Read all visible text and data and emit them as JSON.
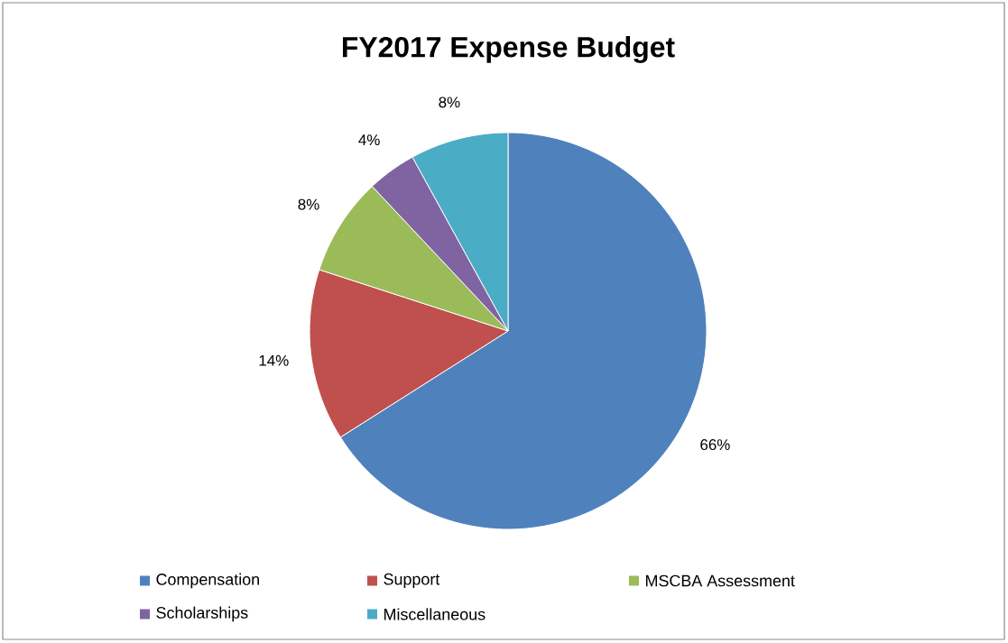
{
  "chart_data": {
    "type": "pie",
    "title": "FY2017  Expense Budget",
    "categories": [
      "Compensation",
      "Support",
      "MSCBA Assessment",
      "Scholarships",
      "Miscellaneous"
    ],
    "values": [
      66,
      14,
      8,
      4,
      8
    ],
    "value_labels": [
      "66%",
      "14%",
      "8%",
      "4%",
      "8%"
    ],
    "colors": [
      "#4f81bd",
      "#c0504d",
      "#9bbb59",
      "#8064a2",
      "#4bacc6"
    ],
    "legend": "bottom"
  }
}
